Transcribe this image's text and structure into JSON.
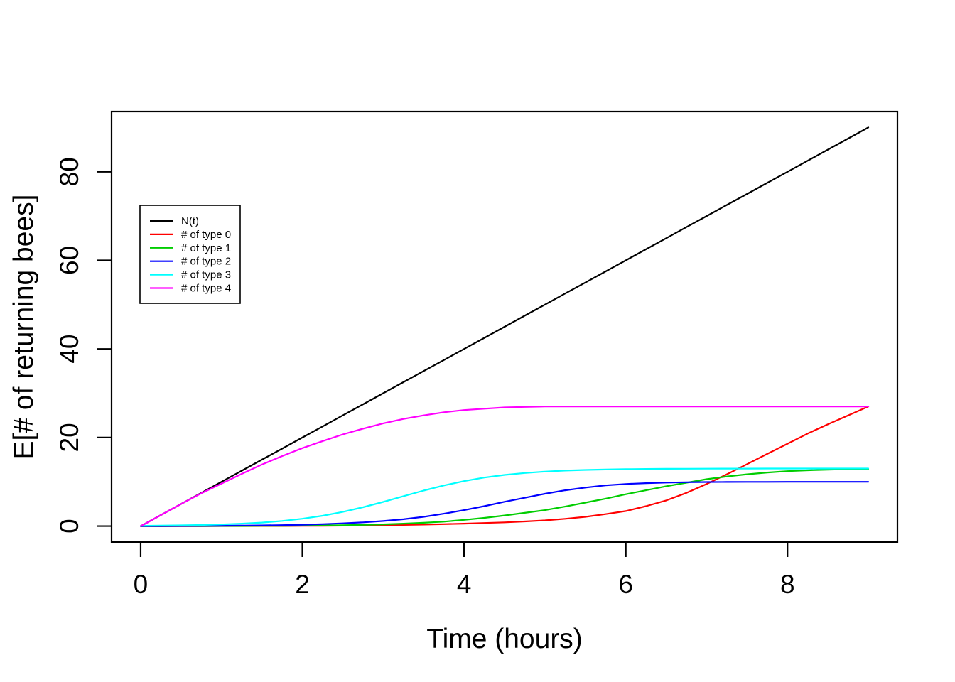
{
  "chart_data": {
    "type": "line",
    "title": "",
    "xlabel": "Time (hours)",
    "ylabel": "E[# of returning bees]",
    "xlim": [
      -0.36,
      9.36
    ],
    "ylim": [
      -3.6,
      93.6
    ],
    "x_ticks": [
      0,
      2,
      4,
      6,
      8
    ],
    "y_ticks": [
      0,
      20,
      40,
      60,
      80
    ],
    "grid": false,
    "background": "#ffffff",
    "axis_color": "#000000",
    "legend_position": "upper-left-inside",
    "x": [
      0,
      0.25,
      0.5,
      0.75,
      1,
      1.25,
      1.5,
      1.75,
      2,
      2.25,
      2.5,
      2.75,
      3,
      3.25,
      3.5,
      3.75,
      4,
      4.25,
      4.5,
      4.75,
      5,
      5.25,
      5.5,
      5.75,
      6,
      6.25,
      6.5,
      6.75,
      7,
      7.25,
      7.5,
      7.75,
      8,
      8.25,
      8.5,
      8.75,
      9
    ],
    "series": [
      {
        "name": "N(t)",
        "color": "#000000",
        "values": [
          0,
          2.5,
          5,
          7.5,
          10,
          12.5,
          15,
          17.5,
          20,
          22.5,
          25,
          27.5,
          30,
          32.5,
          35,
          37.5,
          40,
          42.5,
          45,
          47.5,
          50,
          52.5,
          55,
          57.5,
          60,
          62.5,
          65,
          67.5,
          70,
          72.5,
          75,
          77.5,
          80,
          82.5,
          85,
          87.5,
          90
        ]
      },
      {
        "name": "# of type 0",
        "color": "#FF0000",
        "values": [
          0,
          0,
          0,
          0,
          0.01,
          0.01,
          0.02,
          0.03,
          0.05,
          0.07,
          0.1,
          0.14,
          0.2,
          0.26,
          0.35,
          0.44,
          0.55,
          0.7,
          0.85,
          1.05,
          1.3,
          1.65,
          2.1,
          2.7,
          3.4,
          4.5,
          5.8,
          7.5,
          9.5,
          11.7,
          14,
          16.3,
          18.6,
          20.9,
          23,
          25,
          27
        ]
      },
      {
        "name": "# of type 1",
        "color": "#00CD00",
        "values": [
          0,
          0,
          0.01,
          0.01,
          0.02,
          0.03,
          0.05,
          0.07,
          0.1,
          0.14,
          0.2,
          0.28,
          0.4,
          0.55,
          0.75,
          1,
          1.4,
          1.85,
          2.4,
          3,
          3.6,
          4.4,
          5.3,
          6.2,
          7.2,
          8.1,
          9,
          9.8,
          10.6,
          11.2,
          11.7,
          12.1,
          12.4,
          12.6,
          12.75,
          12.85,
          12.9
        ]
      },
      {
        "name": "# of type 2",
        "color": "#0000FF",
        "values": [
          0,
          0.01,
          0.02,
          0.04,
          0.07,
          0.1,
          0.15,
          0.22,
          0.32,
          0.45,
          0.62,
          0.85,
          1.15,
          1.55,
          2.1,
          2.8,
          3.6,
          4.5,
          5.5,
          6.4,
          7.3,
          8.1,
          8.7,
          9.2,
          9.5,
          9.7,
          9.83,
          9.9,
          9.95,
          9.97,
          9.98,
          9.99,
          10,
          10,
          10,
          10,
          10
        ]
      },
      {
        "name": "# of type 3",
        "color": "#00FFFF",
        "values": [
          0.05,
          0.11,
          0.17,
          0.25,
          0.37,
          0.55,
          0.8,
          1.16,
          1.66,
          2.33,
          3.2,
          4.26,
          5.47,
          6.76,
          8.03,
          9.19,
          10.17,
          10.96,
          11.56,
          11.99,
          12.31,
          12.53,
          12.68,
          12.78,
          12.85,
          12.9,
          12.93,
          12.96,
          12.97,
          12.98,
          12.99,
          13,
          13,
          13,
          13,
          13,
          13
        ]
      },
      {
        "name": "# of type 4",
        "color": "#FF00FF",
        "values": [
          0,
          2.5,
          5,
          7.4,
          9.6,
          11.8,
          13.9,
          15.8,
          17.6,
          19.2,
          20.7,
          22,
          23.2,
          24.2,
          25,
          25.7,
          26.2,
          26.5,
          26.8,
          26.9,
          27,
          27,
          27,
          27,
          27,
          27,
          27,
          27,
          27,
          27,
          27,
          27,
          27,
          27,
          27,
          27,
          27
        ]
      }
    ],
    "legend_entries": [
      {
        "label": "N(t)",
        "color": "#000000"
      },
      {
        "label": "# of type 0",
        "color": "#FF0000"
      },
      {
        "label": "# of type 1",
        "color": "#00CD00"
      },
      {
        "label": "# of type 2",
        "color": "#0000FF"
      },
      {
        "label": "# of type 3",
        "color": "#00FFFF"
      },
      {
        "label": "# of type 4",
        "color": "#FF00FF"
      }
    ]
  }
}
